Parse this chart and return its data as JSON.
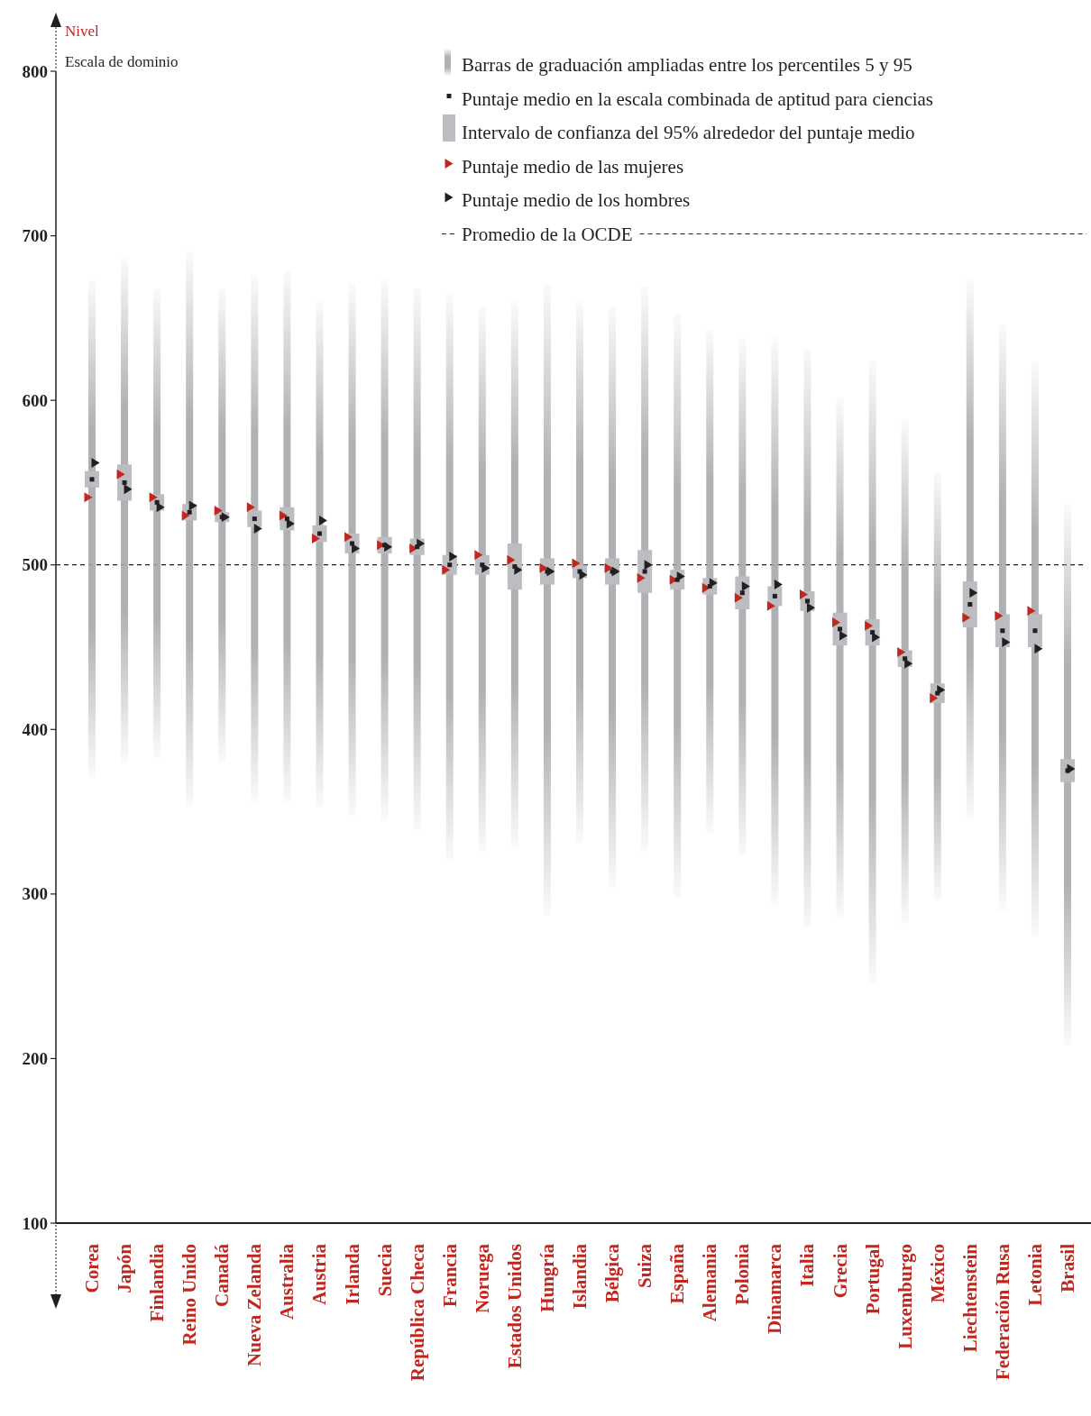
{
  "chart_data": {
    "type": "bar",
    "ylabel": "Nivel",
    "annotations": [
      "Escala de dominio"
    ],
    "categories": [
      "Corea",
      "Japón",
      "Finlandia",
      "Reino Unido",
      "Canadá",
      "Nueva Zelanda",
      "Australia",
      "Austria",
      "Irlanda",
      "Suecia",
      "República Checa",
      "Francia",
      "Noruega",
      "Estados Unidos",
      "Hungría",
      "Islandia",
      "Bélgica",
      "Suiza",
      "España",
      "Alemania",
      "Polonia",
      "Dinamarca",
      "Italia",
      "Grecia",
      "Portugal",
      "Luxemburgo",
      "México",
      "Liechtenstein",
      "Federación Rusa",
      "Letonia",
      "Brasil"
    ],
    "ylim": [
      100,
      800
    ],
    "yticks": [
      100,
      200,
      300,
      400,
      500,
      600,
      700,
      800
    ],
    "legend": "top right",
    "ref_lines": [
      {
        "axis": "y",
        "value": 500,
        "label": "Promedio de la OCDE",
        "line_style": "dashed",
        "color": "#231f20"
      }
    ],
    "series": [
      {
        "name": "Barras de graduación ampliadas entre los percentiles 5 y 95",
        "color": "#a7a8ac",
        "base": [
          371,
          380,
          383,
          353,
          380,
          356,
          356,
          353,
          348,
          345,
          339,
          320,
          326,
          328,
          287,
          331,
          304,
          326,
          298,
          337,
          323,
          293,
          279,
          285,
          246,
          282,
          296,
          345,
          290,
          274,
          208
        ],
        "values": [
          302,
          307,
          285,
          337,
          288,
          320,
          323,
          307,
          323,
          328,
          329,
          345,
          331,
          332,
          384,
          329,
          353,
          343,
          354,
          306,
          315,
          345,
          353,
          317,
          378,
          307,
          260,
          328,
          356,
          350,
          329
        ]
      },
      {
        "type": "scatter",
        "name": "Puntaje medio en la escala combinada de aptitud para ciencias",
        "color": "#231f20",
        "marker": "square",
        "values": [
          552,
          550,
          538,
          532,
          529,
          528,
          528,
          519,
          513,
          512,
          511,
          500,
          500,
          499,
          496,
          496,
          496,
          496,
          491,
          487,
          483,
          481,
          478,
          461,
          459,
          443,
          422,
          476,
          460,
          460,
          375
        ]
      },
      {
        "type": "bar",
        "name": "Intervalo de confianza del 95% alrededor del puntaje medio",
        "color": "#bcbdc1",
        "base": [
          547,
          539,
          533,
          527,
          526,
          523,
          521,
          514,
          507,
          507,
          506,
          494,
          494,
          485,
          488,
          492,
          488,
          483,
          485,
          482,
          473,
          475,
          472,
          451,
          451,
          438,
          416,
          462,
          450,
          450,
          368
        ],
        "values": [
          10,
          22,
          10,
          10,
          6,
          10,
          14,
          10,
          12,
          10,
          10,
          12,
          12,
          28,
          16,
          8,
          16,
          26,
          12,
          10,
          20,
          12,
          12,
          20,
          16,
          10,
          12,
          28,
          20,
          20,
          14
        ]
      },
      {
        "type": "scatter",
        "name": "Puntaje medio de las mujeres",
        "color": "#c0281f",
        "marker": "triangle",
        "values": [
          541,
          555,
          541,
          530,
          533,
          535,
          530,
          516,
          517,
          512,
          510,
          497,
          506,
          503,
          498,
          501,
          498,
          492,
          491,
          486,
          480,
          475,
          482,
          465,
          463,
          447,
          419,
          468,
          469,
          472,
          null
        ]
      },
      {
        "type": "scatter",
        "name": "Puntaje medio de los hombres",
        "color": "#231f20",
        "marker": "triangle",
        "values": [
          562,
          546,
          535,
          536,
          529,
          522,
          525,
          527,
          510,
          511,
          513,
          505,
          498,
          497,
          496,
          494,
          496,
          500,
          493,
          489,
          487,
          488,
          474,
          457,
          456,
          440,
          424,
          483,
          453,
          449,
          376
        ]
      }
    ]
  }
}
